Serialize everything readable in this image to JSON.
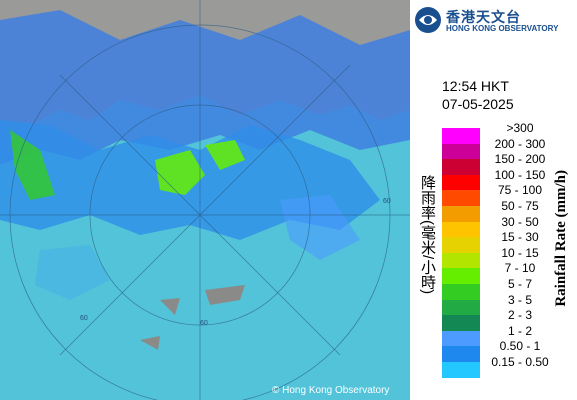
{
  "header": {
    "logo_chinese": "香港天文台",
    "logo_english": "HONG KONG OBSERVATORY"
  },
  "time": "12:54 HKT",
  "date": "07-05-2025",
  "legend": {
    "title_chinese": "降雨率(毫米/小時)",
    "title_english": "Rainfall Rate (mm/h)",
    "items": [
      {
        "label": ">300",
        "color": "#ff00ff"
      },
      {
        "label": "200 - 300",
        "color": "#cc0099"
      },
      {
        "label": "150 - 200",
        "color": "#cc0033"
      },
      {
        "label": "100 - 150",
        "color": "#ff0000"
      },
      {
        "label": "75 - 100",
        "color": "#ff4a00"
      },
      {
        "label": "50 - 75",
        "color": "#f39c00"
      },
      {
        "label": "30 - 50",
        "color": "#ffc400"
      },
      {
        "label": "15 - 30",
        "color": "#e6d200"
      },
      {
        "label": "10 - 15",
        "color": "#b2e600"
      },
      {
        "label": "7 - 10",
        "color": "#66ee00"
      },
      {
        "label": "5 - 7",
        "color": "#33cc22"
      },
      {
        "label": "3 - 5",
        "color": "#22aa44"
      },
      {
        "label": "2 - 3",
        "color": "#138855"
      },
      {
        "label": "1 - 2",
        "color": "#4d9bff"
      },
      {
        "label": "0.50 - 1",
        "color": "#1e88ee"
      },
      {
        "label": "0.15 - 0.50",
        "color": "#22c8ff"
      }
    ]
  },
  "map": {
    "ring_labels": [
      "60",
      "60",
      "60"
    ],
    "copyright": "© Hong Kong Observatory"
  }
}
